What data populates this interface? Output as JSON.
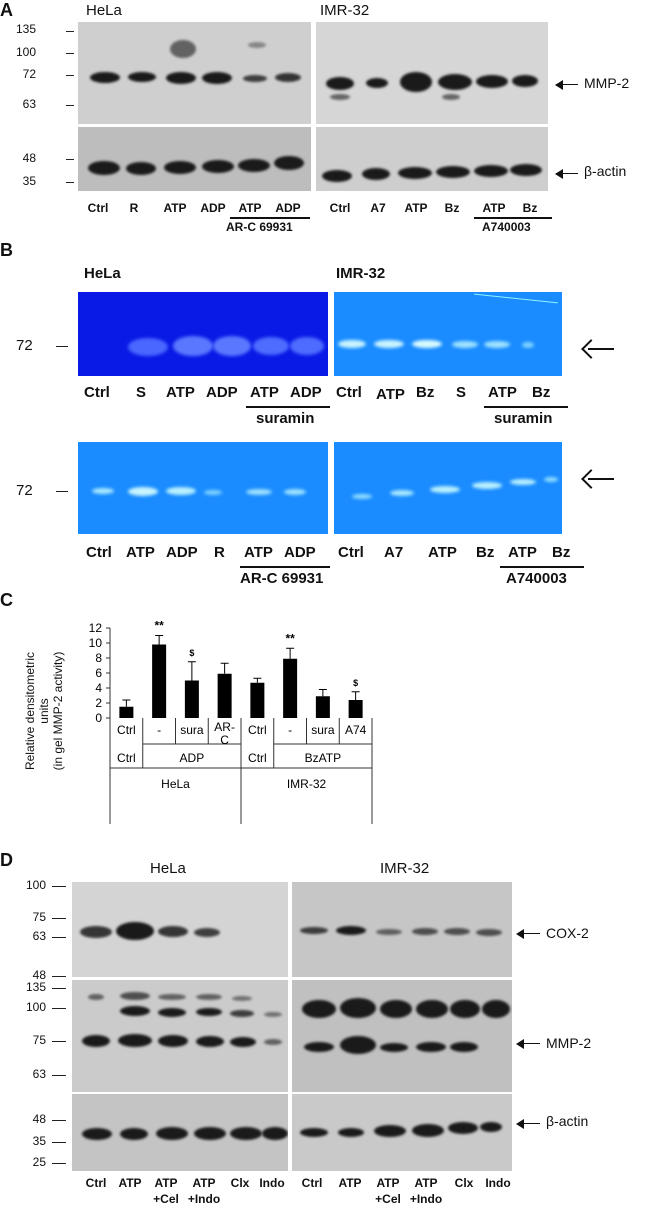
{
  "panelA": {
    "letter": "A",
    "hela_title": "HeLa",
    "imr_title": "IMR-32",
    "mw_top": [
      "135",
      "100",
      "72",
      "63"
    ],
    "mw_bottom": [
      "48",
      "35"
    ],
    "mmp2_label": "MMP-2",
    "actin_label": "β-actin",
    "hela_lanes": [
      "Ctrl",
      "R",
      "ATP",
      "ADP",
      "ATP",
      "ADP"
    ],
    "hela_inhibitor": "AR-C 69931",
    "imr_lanes": [
      "Ctrl",
      "A7",
      "ATP",
      "Bz",
      "ATP",
      "Bz"
    ],
    "imr_inhibitor": "A740003"
  },
  "panelB": {
    "letter": "B",
    "hela_title": "HeLa",
    "imr_title": "IMR-32",
    "mw": "72",
    "row1_hela_lanes": [
      "Ctrl",
      "S",
      "ATP",
      "ADP",
      "ATP",
      "ADP"
    ],
    "row1_hela_inhibitor": "suramin",
    "row1_imr_lanes": [
      "Ctrl",
      "ATP",
      "Bz",
      "S",
      "ATP",
      "Bz"
    ],
    "row1_imr_inhibitor": "suramin",
    "row2_hela_lanes": [
      "Ctrl",
      "ATP",
      "ADP",
      "R",
      "ATP",
      "ADP"
    ],
    "row2_hela_inhibitor": "AR-C 69931",
    "row2_imr_lanes": [
      "Ctrl",
      "A7",
      "ATP",
      "Bz",
      "ATP",
      "Bz"
    ],
    "row2_imr_inhibitor": "A740003"
  },
  "panelC": {
    "letter": "C",
    "ylabel_line1": "Relative densitometric",
    "ylabel_line2": "units",
    "ylabel_line3": "(in gel MMP-2 activity)",
    "row1": [
      "Ctrl",
      "-",
      "sura",
      "AR-C",
      "Ctrl",
      "-",
      "sura",
      "A74"
    ],
    "row2_hela_ctrl": "Ctrl",
    "row2_hela_group": "ADP",
    "row2_imr_ctrl": "Ctrl",
    "row2_imr_group": "BzATP",
    "row3_hela": "HeLa",
    "row3_imr": "IMR-32"
  },
  "chart_data": {
    "type": "bar",
    "categories": [
      "Ctrl",
      "-",
      "sura",
      "AR-C",
      "Ctrl",
      "-",
      "sura",
      "A74"
    ],
    "values": [
      1.5,
      9.8,
      5.0,
      5.9,
      4.7,
      7.9,
      2.9,
      2.4
    ],
    "errors": [
      0.9,
      1.2,
      2.5,
      1.4,
      0.6,
      1.4,
      0.9,
      1.1
    ],
    "significance": [
      "",
      "**",
      "$",
      "",
      "",
      "**",
      "",
      "$"
    ],
    "yticks": [
      "0",
      "2",
      "4",
      "6",
      "8",
      "10",
      "12"
    ],
    "ylim": [
      0,
      12
    ],
    "ylabel": "Relative densitometric units (in gel MMP-2 activity)",
    "bar_color": "#000000"
  },
  "panelD": {
    "letter": "D",
    "hela_title": "HeLa",
    "imr_title": "IMR-32",
    "mw_cox": [
      "100",
      "75",
      "63",
      "48"
    ],
    "mw_mmp": [
      "135",
      "100",
      "75",
      "63"
    ],
    "mw_actin": [
      "48",
      "35",
      "25"
    ],
    "cox_label": "COX-2",
    "mmp2_label": "MMP-2",
    "actin_label": "β-actin",
    "lanes_top": [
      "Ctrl",
      "ATP",
      "ATP",
      "ATP",
      "Clx",
      "Indo"
    ],
    "lanes_bottom": [
      "",
      "",
      "+Cel",
      "+Indo",
      "",
      ""
    ]
  },
  "colors": {
    "gel_dark_blue": "#0a18e6",
    "gel_light_blue": "#1e90ff",
    "blot_gray": "#c9c9c9"
  }
}
